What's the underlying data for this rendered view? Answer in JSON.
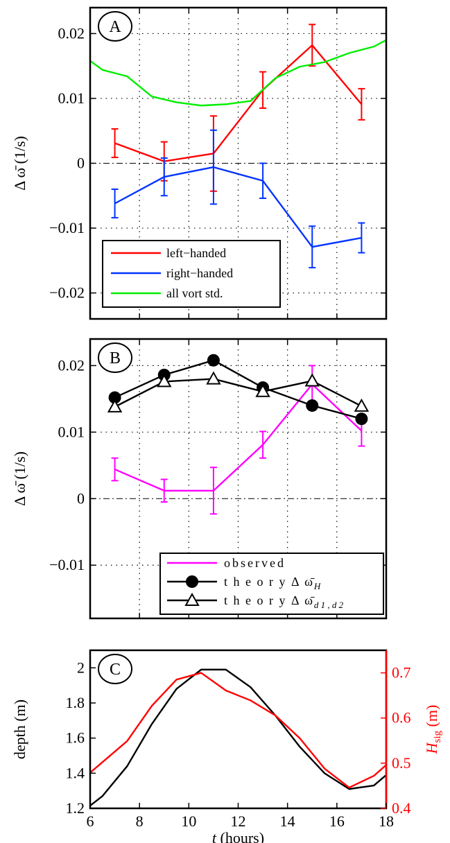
{
  "chart_data": [
    {
      "type": "line",
      "panel_label": "A",
      "ylabel": "Δ ω̄  (1/s)",
      "xlim": [
        6,
        18
      ],
      "ylim": [
        -0.024,
        0.024
      ],
      "xticks": [
        6,
        8,
        10,
        12,
        14,
        16,
        18
      ],
      "yticks": [
        -0.02,
        -0.01,
        0,
        0.01,
        0.02
      ],
      "ytick_labels": [
        "−0.02",
        "−0.01",
        "0",
        "0.01",
        "0.02"
      ],
      "grid": "dotted",
      "zero_line": "dash-dot",
      "legend_position": "bottom-left",
      "series": [
        {
          "name": "left−handed",
          "color": "#ff0000",
          "x": [
            7,
            9,
            11,
            13,
            15,
            17
          ],
          "y": [
            0.0031,
            0.0003,
            0.0015,
            0.0113,
            0.0182,
            0.0091
          ],
          "err": [
            0.0022,
            0.003,
            0.0058,
            0.0028,
            0.0032,
            0.0024
          ]
        },
        {
          "name": "right−handed",
          "color": "#0033ff",
          "x": [
            7,
            9,
            11,
            13,
            15,
            17
          ],
          "y": [
            -0.0062,
            -0.0021,
            -0.0006,
            -0.0027,
            -0.0129,
            -0.0115
          ],
          "err": [
            0.0022,
            0.0029,
            0.0057,
            0.0027,
            0.0032,
            0.0023
          ]
        },
        {
          "name": "all vort std.",
          "color": "#00ee00",
          "x": [
            6,
            6.5,
            7.5,
            8.5,
            9.5,
            10.5,
            11.5,
            12.5,
            13.5,
            14.5,
            15.5,
            16.5,
            17.5,
            18
          ],
          "y": [
            0.0158,
            0.0144,
            0.0134,
            0.0103,
            0.0094,
            0.0089,
            0.0091,
            0.0096,
            0.0131,
            0.0149,
            0.0156,
            0.017,
            0.018,
            0.019
          ]
        }
      ]
    },
    {
      "type": "line",
      "panel_label": "B",
      "ylabel": "Δ ω̄  (1/s)",
      "xlim": [
        6,
        18
      ],
      "ylim": [
        -0.018,
        0.024
      ],
      "xticks": [
        6,
        8,
        10,
        12,
        14,
        16,
        18
      ],
      "yticks": [
        -0.01,
        0,
        0.01,
        0.02
      ],
      "ytick_labels": [
        "−0.01",
        "0",
        "0.01",
        "0.02"
      ],
      "grid": "dotted",
      "zero_line": "dash-dot",
      "legend_position": "bottom-right",
      "series": [
        {
          "name": "observed",
          "color": "#ff00ff",
          "marker": "none",
          "x": [
            7,
            9,
            11,
            13,
            15,
            17
          ],
          "y": [
            0.0044,
            0.0012,
            0.0012,
            0.0081,
            0.0172,
            0.0102
          ],
          "err": [
            0.0017,
            0.0017,
            0.0035,
            0.002,
            0.0028,
            0.0023
          ]
        },
        {
          "name_prefix": "t h e o r y  Δ ω̄",
          "name_sub": "H",
          "color": "#000000",
          "marker": "circle",
          "x": [
            7,
            9,
            11,
            13,
            15,
            17
          ],
          "y": [
            0.0152,
            0.0186,
            0.0208,
            0.0167,
            0.014,
            0.012
          ]
        },
        {
          "name_prefix": "t h e o r y  Δ ω̄",
          "name_sub": "d 1 , d 2",
          "color": "#000000",
          "marker": "triangle",
          "x": [
            7,
            9,
            11,
            13,
            15,
            17
          ],
          "y": [
            0.0138,
            0.0176,
            0.018,
            0.0161,
            0.0177,
            0.0139
          ]
        }
      ]
    },
    {
      "type": "line",
      "panel_label": "C",
      "xlabel_italic": "t",
      "xlabel_rest": " (hours)",
      "ylabel": "depth (m)",
      "y2label_italic": "H",
      "y2label_sub": "sig",
      "y2label_rest": " (m)",
      "xlim": [
        6,
        18
      ],
      "ylim": [
        1.2,
        2.1
      ],
      "y2lim": [
        0.4,
        0.75
      ],
      "xticks": [
        6,
        8,
        10,
        12,
        14,
        16,
        18
      ],
      "yticks": [
        1.2,
        1.4,
        1.6,
        1.8,
        2
      ],
      "ytick_labels": [
        "1.2",
        "1.4",
        "1.6",
        "1.8",
        "2"
      ],
      "y2ticks": [
        0.4,
        0.5,
        0.6,
        0.7
      ],
      "y2tick_labels": [
        "0.4",
        "0.5",
        "0.6",
        "0.7"
      ],
      "series": [
        {
          "axis": "left",
          "color": "#000000",
          "x": [
            6,
            6.5,
            7.5,
            8.5,
            9.5,
            10.5,
            11.5,
            12.5,
            13.5,
            14.5,
            15.5,
            16.5,
            17.5,
            18
          ],
          "y": [
            1.215,
            1.27,
            1.44,
            1.68,
            1.88,
            1.99,
            1.99,
            1.89,
            1.73,
            1.55,
            1.4,
            1.31,
            1.33,
            1.39
          ]
        },
        {
          "axis": "right",
          "color": "#ff0000",
          "x": [
            6,
            7.5,
            8.5,
            9.5,
            10.5,
            11.5,
            12.5,
            13.5,
            14.5,
            15.5,
            16.5,
            17.5,
            18
          ],
          "y": [
            0.479,
            0.549,
            0.627,
            0.685,
            0.7,
            0.661,
            0.639,
            0.606,
            0.555,
            0.488,
            0.446,
            0.472,
            0.496
          ]
        }
      ]
    }
  ]
}
